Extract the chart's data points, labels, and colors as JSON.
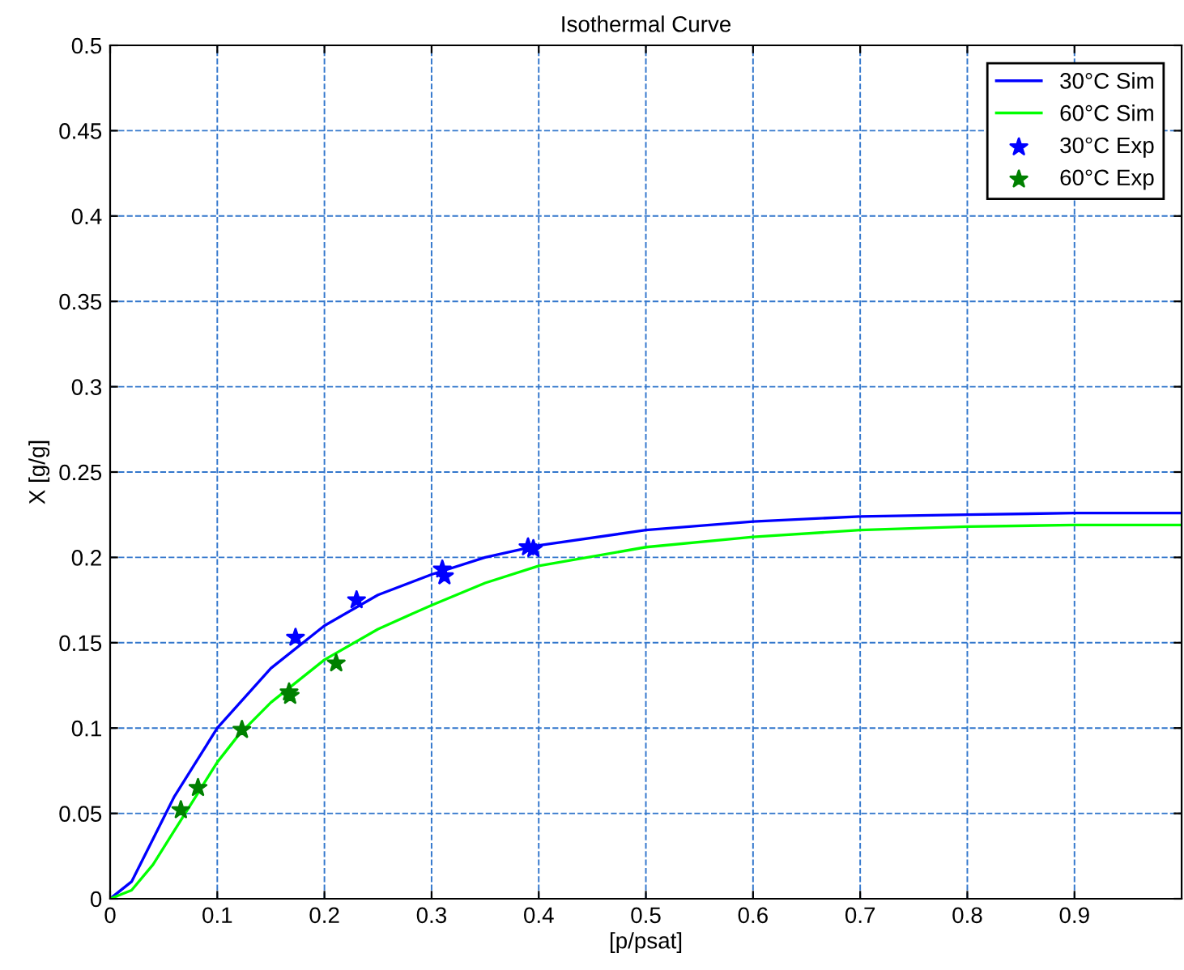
{
  "chart_data": {
    "type": "line",
    "title": "Isothermal Curve",
    "xlabel": "[p/psat]",
    "ylabel": "X [g/g]",
    "xlim": [
      0,
      1
    ],
    "xticks": [
      0,
      0.1,
      0.2,
      0.3,
      0.4,
      0.5,
      0.6,
      0.7,
      0.8,
      0.9
    ],
    "ylim": [
      0,
      0.5
    ],
    "yticks": [
      0,
      0.05,
      0.1,
      0.15,
      0.2,
      0.25,
      0.3,
      0.35,
      0.4,
      0.45,
      0.5
    ],
    "grid": true,
    "legend": "top right",
    "series": [
      {
        "name": "30°C Sim",
        "color": "#0000ff",
        "marker": "none",
        "line_style": "solid",
        "x": [
          0,
          0.02,
          0.04,
          0.06,
          0.08,
          0.1,
          0.15,
          0.2,
          0.25,
          0.3,
          0.35,
          0.4,
          0.5,
          0.6,
          0.7,
          0.8,
          0.9,
          1.0
        ],
        "values": [
          0,
          0.01,
          0.035,
          0.06,
          0.08,
          0.1,
          0.135,
          0.16,
          0.178,
          0.19,
          0.2,
          0.207,
          0.216,
          0.221,
          0.224,
          0.225,
          0.226,
          0.226
        ]
      },
      {
        "name": "60°C Sim",
        "color": "#00ff00",
        "marker": "none",
        "line_style": "solid",
        "x": [
          0,
          0.02,
          0.04,
          0.06,
          0.08,
          0.1,
          0.12,
          0.15,
          0.2,
          0.25,
          0.3,
          0.35,
          0.4,
          0.5,
          0.6,
          0.7,
          0.8,
          0.9,
          1.0
        ],
        "values": [
          0,
          0.005,
          0.02,
          0.04,
          0.06,
          0.08,
          0.096,
          0.115,
          0.14,
          0.158,
          0.172,
          0.185,
          0.195,
          0.206,
          0.212,
          0.216,
          0.218,
          0.219,
          0.219
        ]
      },
      {
        "name": "30°C Exp",
        "type": "scatter",
        "color": "#0000ff",
        "marker": "star",
        "x": [
          0.173,
          0.23,
          0.31,
          0.312,
          0.39,
          0.395
        ],
        "values": [
          0.153,
          0.175,
          0.193,
          0.189,
          0.206,
          0.205
        ]
      },
      {
        "name": "60°C Exp",
        "type": "scatter",
        "color": "#008000",
        "marker": "star",
        "x": [
          0.066,
          0.082,
          0.123,
          0.167,
          0.168,
          0.211
        ],
        "values": [
          0.052,
          0.065,
          0.099,
          0.121,
          0.119,
          0.138
        ]
      }
    ]
  }
}
